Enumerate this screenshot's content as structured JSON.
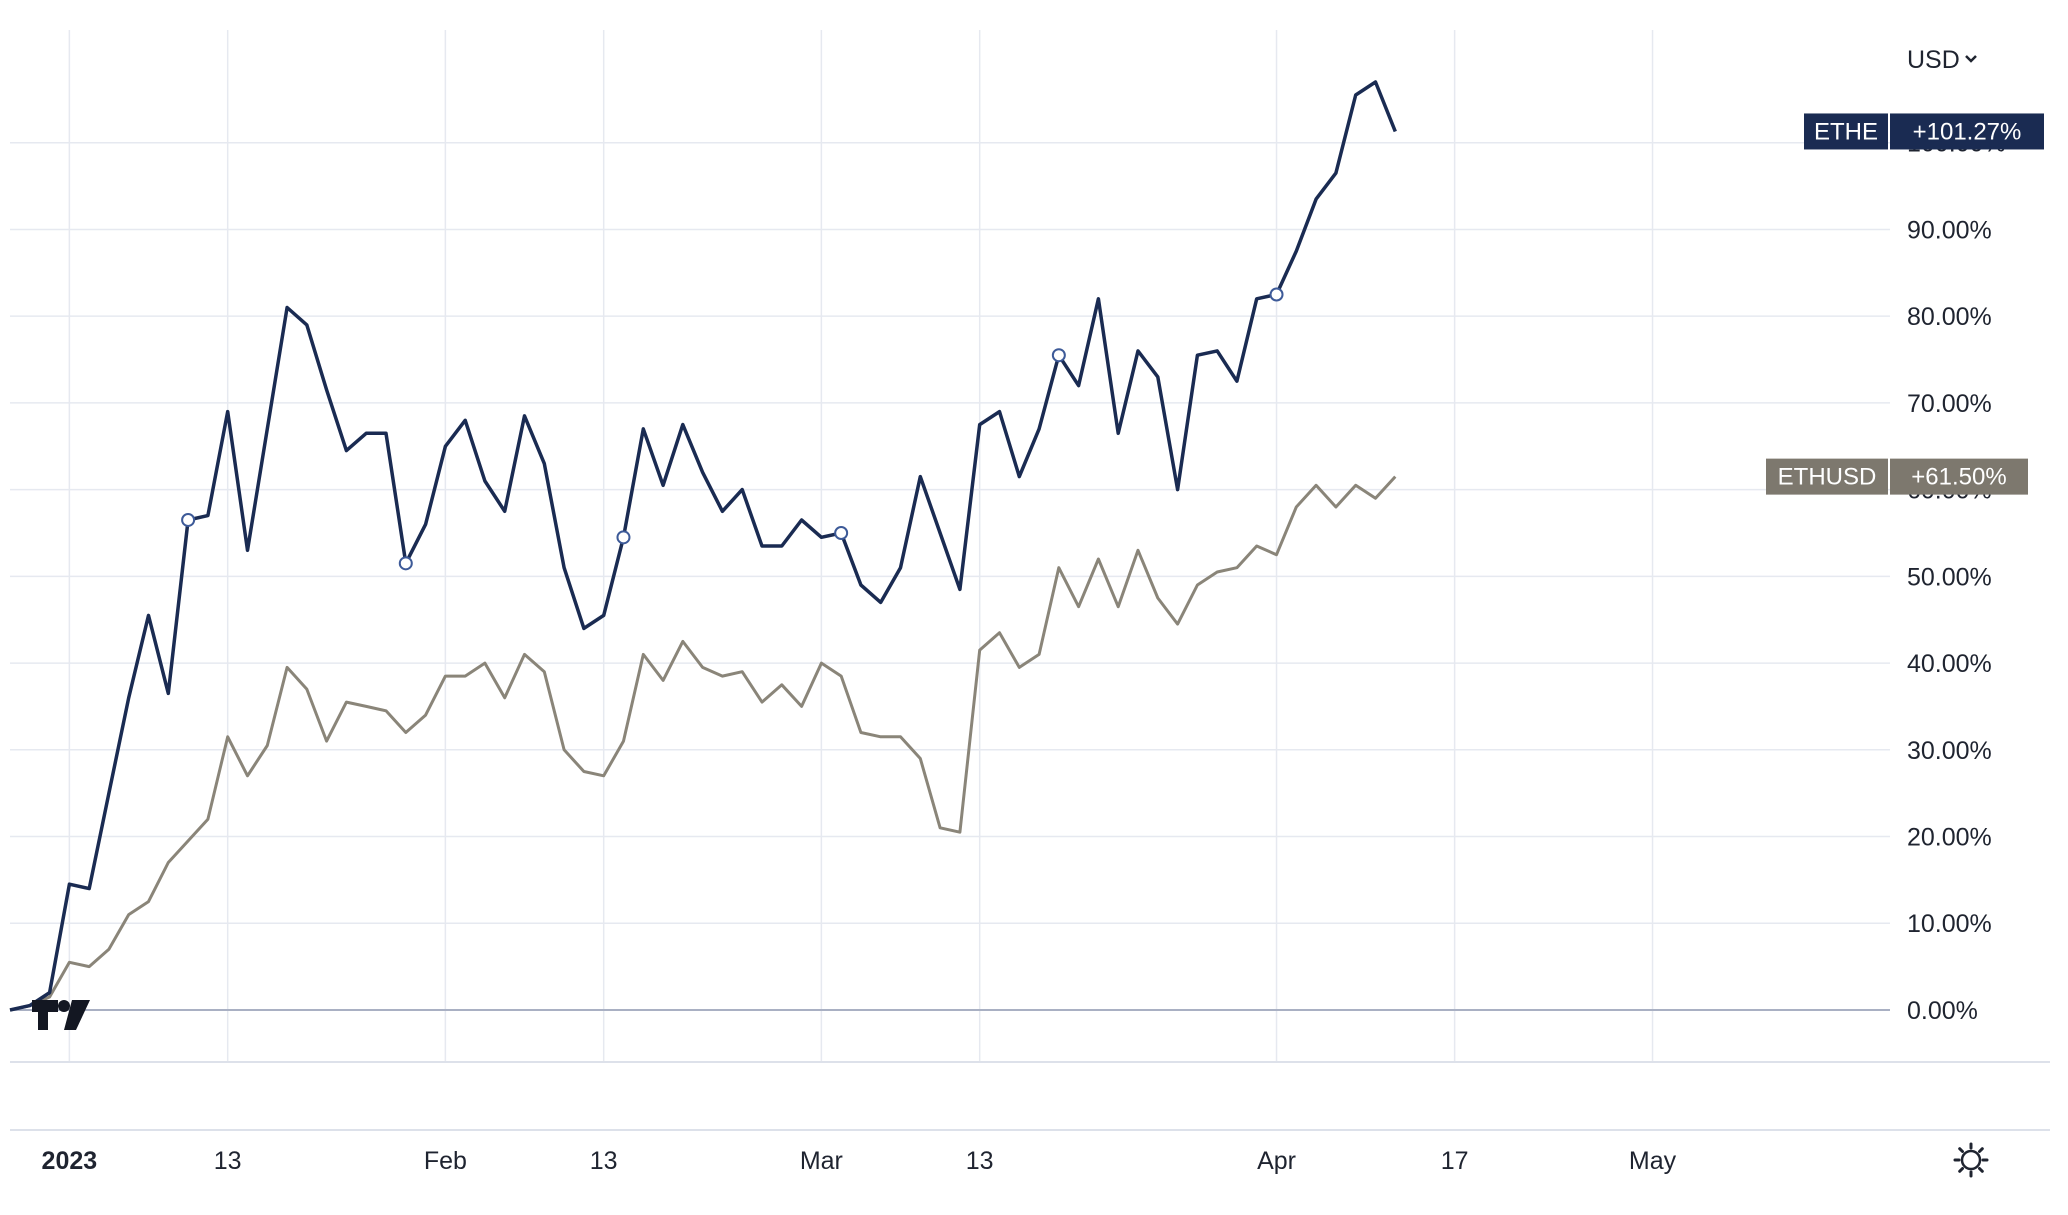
{
  "header": {
    "currency": "USD"
  },
  "colors": {
    "ethe": "#1a2b52",
    "ethusd": "#8a8579",
    "ethusd_badge": "#7d786e",
    "grid": "#e6e9f0",
    "zero": "#a9b0c3"
  },
  "icons": {
    "settings": "gear-icon",
    "logo": "tradingview-logo-icon",
    "dropdown": "chevron-down-icon"
  },
  "chart_data": {
    "type": "line",
    "ylabel": "",
    "xlabel": "",
    "ylim": [
      -6,
      113
    ],
    "yticks": [
      0,
      10,
      20,
      30,
      40,
      50,
      60,
      70,
      80,
      90,
      100
    ],
    "ytick_labels": [
      "0.00%",
      "10.00%",
      "20.00%",
      "30.00%",
      "40.00%",
      "50.00%",
      "60.00%",
      "70.00%",
      "80.00%",
      "90.00%",
      "100.00%"
    ],
    "xlim": [
      0,
      95
    ],
    "xticks": [
      {
        "x": 3,
        "label": "2023"
      },
      {
        "x": 11,
        "label": "13"
      },
      {
        "x": 22,
        "label": "Feb"
      },
      {
        "x": 30,
        "label": "13"
      },
      {
        "x": 41,
        "label": "Mar"
      },
      {
        "x": 49,
        "label": "13"
      },
      {
        "x": 64,
        "label": "Apr"
      },
      {
        "x": 73,
        "label": "17"
      },
      {
        "x": 83,
        "label": "May"
      }
    ],
    "series": [
      {
        "name": "ETHE",
        "last_value_label": "+101.27%",
        "x": [
          0,
          1,
          2,
          3,
          4,
          5,
          6,
          7,
          8,
          9,
          10,
          11,
          12,
          13,
          14,
          15,
          16,
          17,
          18,
          19,
          20,
          21,
          22,
          23,
          24,
          25,
          26,
          27,
          28,
          29,
          30,
          31,
          32,
          33,
          34,
          35,
          36,
          37,
          38,
          39,
          40,
          41,
          42,
          43,
          44,
          45,
          46,
          47,
          48,
          49,
          50,
          51,
          52,
          53,
          54,
          55,
          56,
          57,
          58,
          59,
          60,
          61,
          62,
          63,
          64,
          65,
          66,
          67,
          68,
          69,
          70
        ],
        "values": [
          0,
          0.5,
          2,
          14.5,
          14,
          25,
          36,
          45.5,
          36.5,
          56.5,
          57,
          69,
          53,
          67,
          81,
          79,
          71.5,
          64.5,
          66.5,
          66.5,
          51.5,
          56,
          65,
          68,
          61,
          57.5,
          68.5,
          63,
          51,
          44,
          45.5,
          54.5,
          67,
          60.5,
          67.5,
          62,
          57.5,
          60,
          53.5,
          53.5,
          56.5,
          54.5,
          55,
          49,
          47,
          51,
          61.5,
          55,
          48.5,
          67.5,
          69,
          61.5,
          67,
          75.5,
          72,
          82,
          66.5,
          76,
          73,
          60,
          75.5,
          76,
          72.5,
          82,
          82.5,
          87.5,
          93.5,
          96.5,
          105.5,
          107,
          101.3
        ],
        "markers": [
          9,
          20,
          31,
          42,
          53,
          64
        ]
      },
      {
        "name": "ETHUSD",
        "last_value_label": "+61.50%",
        "x": [
          0,
          1,
          2,
          3,
          4,
          5,
          6,
          7,
          8,
          9,
          10,
          11,
          12,
          13,
          14,
          15,
          16,
          17,
          18,
          19,
          20,
          21,
          22,
          23,
          24,
          25,
          26,
          27,
          28,
          29,
          30,
          31,
          32,
          33,
          34,
          35,
          36,
          37,
          38,
          39,
          40,
          41,
          42,
          43,
          44,
          45,
          46,
          47,
          48,
          49,
          50,
          51,
          52,
          53,
          54,
          55,
          56,
          57,
          58,
          59,
          60,
          61,
          62,
          63,
          64,
          65,
          66,
          67,
          68,
          69,
          70
        ],
        "values": [
          0,
          0.5,
          1.5,
          5.5,
          5,
          7,
          11,
          12.5,
          17,
          19.5,
          22,
          31.5,
          27,
          30.5,
          39.5,
          37,
          31,
          35.5,
          35,
          34.5,
          32,
          34,
          38.5,
          38.5,
          40,
          36,
          41,
          39,
          30,
          27.5,
          27,
          31,
          41,
          38,
          42.5,
          39.5,
          38.5,
          39,
          35.5,
          37.5,
          35,
          40,
          38.5,
          32,
          31.5,
          31.5,
          29,
          21,
          20.5,
          41.5,
          43.5,
          39.5,
          41,
          51,
          46.5,
          52,
          46.5,
          53,
          47.5,
          44.5,
          49,
          50.5,
          51,
          53.5,
          52.5,
          58,
          60.5,
          58,
          60.5,
          59,
          61.5
        ]
      }
    ]
  }
}
